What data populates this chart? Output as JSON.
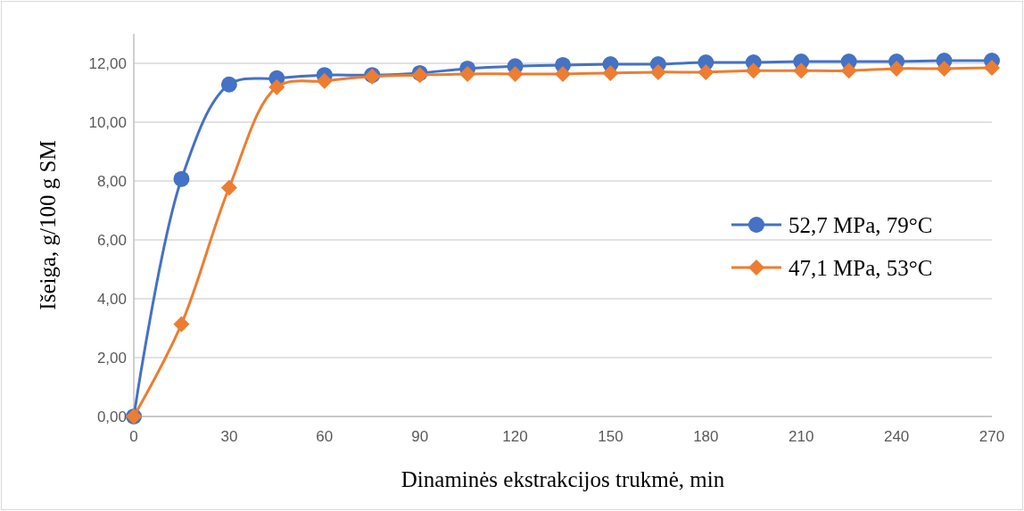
{
  "chart_data": {
    "type": "line",
    "xlabel": "Dinaminės ekstrakcijos trukmė, min",
    "ylabel": "Išeiga,  g/100 g SM",
    "x": [
      0,
      15,
      30,
      45,
      60,
      75,
      90,
      105,
      120,
      135,
      150,
      165,
      180,
      195,
      210,
      225,
      240,
      255,
      270
    ],
    "series": [
      {
        "name": "52,7 MPa, 79°C",
        "color": "#4472c4",
        "marker": "circle",
        "values": [
          0,
          8.07,
          11.28,
          11.49,
          11.6,
          11.6,
          11.67,
          11.82,
          11.9,
          11.94,
          11.97,
          11.97,
          12.03,
          12.03,
          12.06,
          12.06,
          12.06,
          12.09,
          12.09
        ]
      },
      {
        "name": "47,1 MPa, 53°C",
        "color": "#ed7d31",
        "marker": "diamond",
        "values": [
          0,
          3.14,
          7.77,
          11.19,
          11.4,
          11.55,
          11.6,
          11.64,
          11.64,
          11.64,
          11.67,
          11.7,
          11.7,
          11.75,
          11.75,
          11.75,
          11.82,
          11.82,
          11.85
        ]
      }
    ],
    "xlim": [
      0,
      270
    ],
    "xticks": [
      0,
      30,
      60,
      90,
      120,
      150,
      180,
      210,
      240,
      270
    ],
    "ylim": [
      0,
      13
    ],
    "yticks": [
      {
        "value": 0,
        "label": "0,00"
      },
      {
        "value": 2,
        "label": "2,00"
      },
      {
        "value": 4,
        "label": "4,00"
      },
      {
        "value": 6,
        "label": "6,00"
      },
      {
        "value": 8,
        "label": "8,00"
      },
      {
        "value": 10,
        "label": "10,00"
      },
      {
        "value": 12,
        "label": "12,00"
      }
    ],
    "grid": "y",
    "legend": "right",
    "line_style": "solid"
  }
}
